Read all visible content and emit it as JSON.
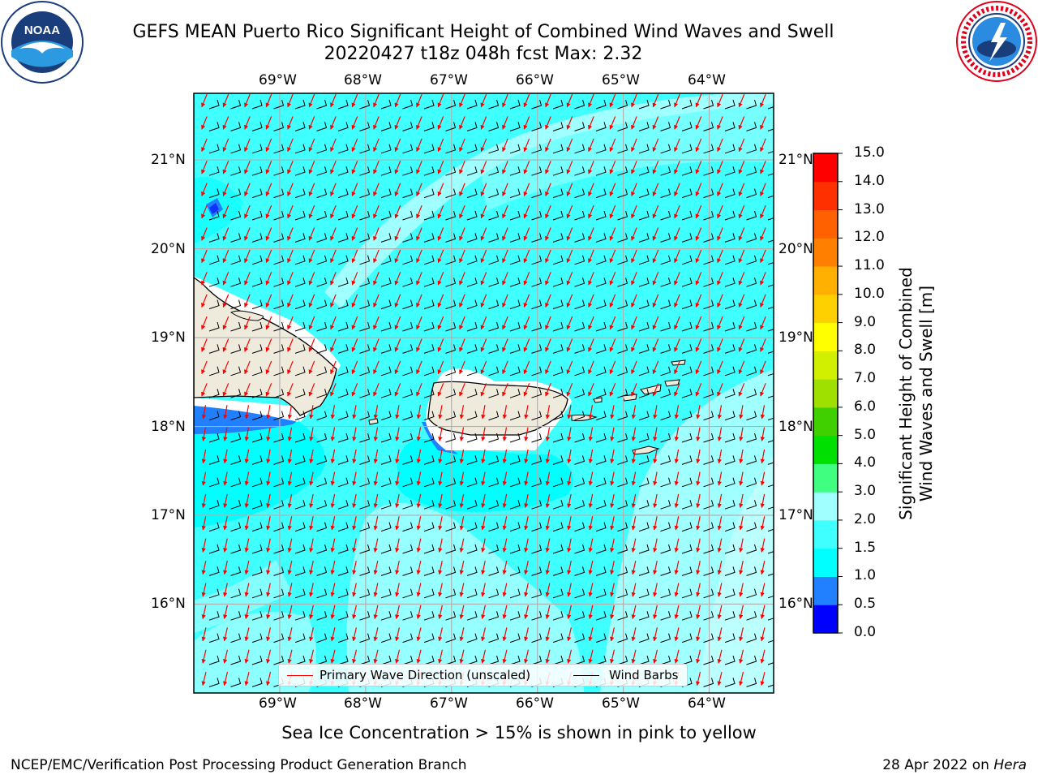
{
  "header": {
    "title_line1": "GEFS MEAN Puerto Rico Significant Height of Combined Wind Waves and Swell",
    "title_line2": "20220427 t18z 048h fcst   Max: 2.32"
  },
  "logos": {
    "left": {
      "name": "noaa-logo",
      "text": "NOAA",
      "ring_text": "NATIONAL OCEANIC AND ATMOSPHERIC ADMINISTRATION · U.S. DEPARTMENT OF COMMERCE"
    },
    "right": {
      "name": "national-weather-service-logo",
      "ring_text": "NATIONAL WEATHER SERVICE"
    }
  },
  "map": {
    "lon_labels": [
      "69°W",
      "68°W",
      "67°W",
      "66°W",
      "65°W",
      "64°W"
    ],
    "lat_labels": [
      "21°N",
      "20°N",
      "19°N",
      "18°N",
      "17°N",
      "16°N"
    ],
    "lon_values": [
      -69,
      -68,
      -67,
      -66,
      -65,
      -64
    ],
    "lat_values": [
      21,
      20,
      19,
      18,
      17,
      16
    ],
    "lon_range": [
      -70,
      -63.25
    ],
    "lat_range": [
      15,
      21.75
    ],
    "colors": {
      "land": "#eeebdc",
      "wave_direction_arrow": "#ff0000",
      "wind_barb": "#000000",
      "gridline": "#b0b0b0"
    }
  },
  "colorbar": {
    "title_line1": "Significant Height of Combined",
    "title_line2": "Wind Waves and Swell [m]",
    "ticks": [
      "0.0",
      "0.5",
      "1.0",
      "1.5",
      "2.0",
      "3.0",
      "4.0",
      "5.0",
      "6.0",
      "7.0",
      "8.0",
      "9.0",
      "10.0",
      "11.0",
      "12.0",
      "13.0",
      "14.0",
      "15.0"
    ],
    "colors": [
      "#0000ff",
      "#2080ff",
      "#00ffff",
      "#40ffff",
      "#a0ffff",
      "#40ff80",
      "#00e000",
      "#40d000",
      "#a0e000",
      "#d0f000",
      "#ffff00",
      "#ffd000",
      "#ffb000",
      "#ff8000",
      "#ff6000",
      "#ff3000",
      "#ff0000"
    ]
  },
  "legend": {
    "items": [
      {
        "label": "Primary Wave Direction (unscaled)",
        "color": "#ff0000"
      },
      {
        "label": "Wind Barbs",
        "color": "#000000"
      }
    ]
  },
  "caption": "Sea Ice Concentration > 15% is shown in pink to yellow",
  "footer": {
    "left": "NCEP/EMC/Verification Post Processing Product Generation Branch",
    "right_prefix": "28 Apr 2022 on",
    "right_host": "Hera"
  }
}
